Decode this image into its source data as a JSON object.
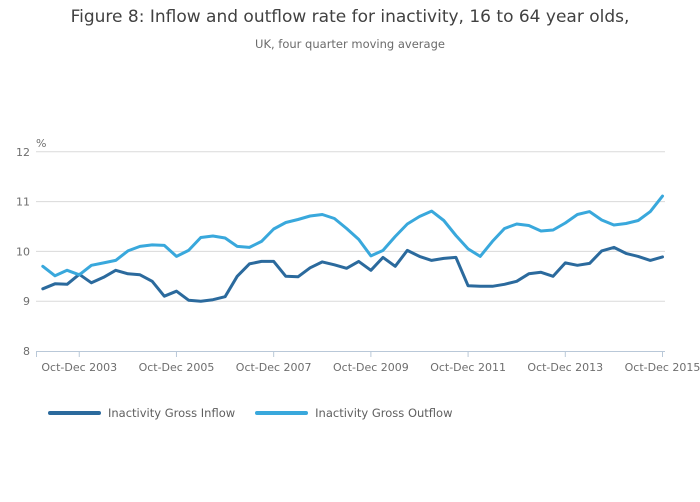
{
  "header": {
    "title": "Figure 8: Inflow and outflow rate for inactivity, 16 to 64 year olds,",
    "subtitle": "UK, four quarter moving average"
  },
  "legend": {
    "items": [
      {
        "label": "Inactivity Gross Inflow",
        "color": "#2B6A9D"
      },
      {
        "label": "Inactivity Gross Outflow",
        "color": "#39A8DC"
      }
    ]
  },
  "chart_data": {
    "type": "line",
    "title": "Figure 8: Inflow and outflow rate for inactivity, 16 to 64 year olds,",
    "subtitle": "UK, four quarter moving average",
    "unit_label": "%",
    "xlabel": "",
    "ylabel": "%",
    "ylim": [
      8,
      12
    ],
    "y_ticks": [
      8,
      9,
      10,
      11,
      12
    ],
    "grid": "horizontal",
    "legend_position": "bottom",
    "x_tick_labels": [
      "Oct-Dec 2003",
      "Oct-Dec 2005",
      "Oct-Dec 2007",
      "Oct-Dec 2009",
      "Oct-Dec 2011",
      "Oct-Dec 2013",
      "Oct-Dec 2015"
    ],
    "x": [
      "Jan-Mar 2003",
      "Apr-Jun 2003",
      "Jul-Sep 2003",
      "Oct-Dec 2003",
      "Jan-Mar 2004",
      "Apr-Jun 2004",
      "Jul-Sep 2004",
      "Oct-Dec 2004",
      "Jan-Mar 2005",
      "Apr-Jun 2005",
      "Jul-Sep 2005",
      "Oct-Dec 2005",
      "Jan-Mar 2006",
      "Apr-Jun 2006",
      "Jul-Sep 2006",
      "Oct-Dec 2006",
      "Jan-Mar 2007",
      "Apr-Jun 2007",
      "Jul-Sep 2007",
      "Oct-Dec 2007",
      "Jan-Mar 2008",
      "Apr-Jun 2008",
      "Jul-Sep 2008",
      "Oct-Dec 2008",
      "Jan-Mar 2009",
      "Apr-Jun 2009",
      "Jul-Sep 2009",
      "Oct-Dec 2009",
      "Jan-Mar 2010",
      "Apr-Jun 2010",
      "Jul-Sep 2010",
      "Oct-Dec 2010",
      "Jan-Mar 2011",
      "Apr-Jun 2011",
      "Jul-Sep 2011",
      "Oct-Dec 2011",
      "Jan-Mar 2012",
      "Apr-Jun 2012",
      "Jul-Sep 2012",
      "Oct-Dec 2012",
      "Jan-Mar 2013",
      "Apr-Jun 2013",
      "Jul-Sep 2013",
      "Oct-Dec 2013",
      "Jan-Mar 2014",
      "Apr-Jun 2014",
      "Jul-Sep 2014",
      "Oct-Dec 2014",
      "Jan-Mar 2015",
      "Apr-Jun 2015",
      "Jul-Sep 2015",
      "Oct-Dec 2015"
    ],
    "series": [
      {
        "name": "Inactivity Gross Inflow",
        "color": "#2B6A9D",
        "values": [
          9.25,
          9.35,
          9.34,
          9.54,
          9.37,
          9.48,
          9.62,
          9.55,
          9.53,
          9.4,
          9.1,
          9.2,
          9.02,
          9.0,
          9.03,
          9.09,
          9.5,
          9.75,
          9.8,
          9.8,
          9.5,
          9.49,
          9.67,
          9.79,
          9.73,
          9.66,
          9.8,
          9.62,
          9.88,
          9.7,
          10.02,
          9.9,
          9.82,
          9.86,
          9.88,
          9.31,
          9.3,
          9.3,
          9.34,
          9.4,
          9.55,
          9.58,
          9.5,
          9.77,
          9.72,
          9.76,
          10.01,
          10.08,
          9.96,
          9.9,
          9.82,
          9.89
        ]
      },
      {
        "name": "Inactivity Gross Outflow",
        "color": "#39A8DC",
        "values": [
          9.7,
          9.51,
          9.62,
          9.53,
          9.72,
          9.77,
          9.82,
          10.01,
          10.1,
          10.13,
          10.12,
          9.9,
          10.02,
          10.28,
          10.31,
          10.27,
          10.1,
          10.08,
          10.2,
          10.45,
          10.58,
          10.64,
          10.71,
          10.74,
          10.66,
          10.46,
          10.24,
          9.91,
          10.02,
          10.3,
          10.55,
          10.7,
          10.81,
          10.62,
          10.32,
          10.05,
          9.9,
          10.2,
          10.46,
          10.55,
          10.52,
          10.41,
          10.43,
          10.57,
          10.74,
          10.8,
          10.63,
          10.53,
          10.56,
          10.62,
          10.8,
          11.11
        ]
      }
    ],
    "style": {
      "grid_color": "#dadada",
      "axis_color": "#b9c8d8",
      "tick_text_color": "#6e6e6e",
      "line_width": 3
    }
  }
}
